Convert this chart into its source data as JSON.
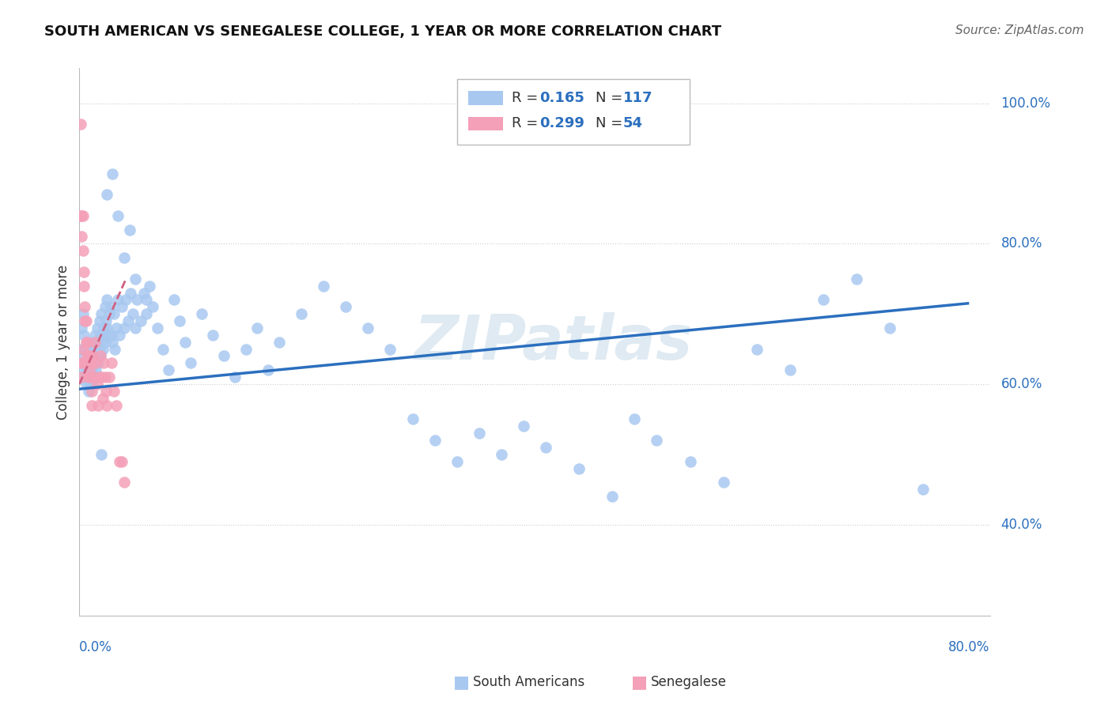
{
  "title": "SOUTH AMERICAN VS SENEGALESE COLLEGE, 1 YEAR OR MORE CORRELATION CHART",
  "source": "Source: ZipAtlas.com",
  "ylabel": "College, 1 year or more",
  "blue_color": "#A8C8F0",
  "pink_color": "#F4A0B8",
  "blue_line_color": "#2B6FBE",
  "pink_line_color": "#D06080",
  "watermark": "ZIPatlas",
  "xlim_min": 0.0,
  "xlim_max": 0.82,
  "ylim_min": 0.27,
  "ylim_max": 1.05,
  "ytick_values": [
    0.4,
    0.6,
    0.8,
    1.0
  ],
  "ytick_labels": [
    "40.0%",
    "60.0%",
    "80.0%",
    "100.0%"
  ],
  "grid_color": "#CCCCCC",
  "blue_r": "0.165",
  "blue_n": "117",
  "pink_r": "0.299",
  "pink_n": "54",
  "blue_x": [
    0.001,
    0.002,
    0.002,
    0.003,
    0.003,
    0.004,
    0.004,
    0.005,
    0.005,
    0.006,
    0.006,
    0.007,
    0.007,
    0.008,
    0.008,
    0.009,
    0.009,
    0.01,
    0.01,
    0.011,
    0.011,
    0.012,
    0.012,
    0.013,
    0.013,
    0.014,
    0.014,
    0.015,
    0.015,
    0.016,
    0.016,
    0.017,
    0.017,
    0.018,
    0.018,
    0.019,
    0.019,
    0.02,
    0.02,
    0.021,
    0.022,
    0.022,
    0.023,
    0.023,
    0.024,
    0.025,
    0.025,
    0.026,
    0.027,
    0.028,
    0.029,
    0.03,
    0.031,
    0.032,
    0.033,
    0.035,
    0.036,
    0.038,
    0.04,
    0.042,
    0.044,
    0.046,
    0.048,
    0.05,
    0.052,
    0.055,
    0.058,
    0.06,
    0.063,
    0.066,
    0.07,
    0.075,
    0.08,
    0.085,
    0.09,
    0.095,
    0.1,
    0.11,
    0.12,
    0.13,
    0.14,
    0.15,
    0.16,
    0.17,
    0.18,
    0.2,
    0.22,
    0.24,
    0.26,
    0.28,
    0.3,
    0.32,
    0.34,
    0.36,
    0.38,
    0.4,
    0.42,
    0.45,
    0.48,
    0.5,
    0.52,
    0.55,
    0.58,
    0.61,
    0.64,
    0.67,
    0.7,
    0.73,
    0.76,
    0.02,
    0.025,
    0.03,
    0.035,
    0.04,
    0.045,
    0.05,
    0.06
  ],
  "blue_y": [
    0.65,
    0.63,
    0.68,
    0.62,
    0.7,
    0.64,
    0.67,
    0.61,
    0.65,
    0.6,
    0.63,
    0.62,
    0.65,
    0.59,
    0.63,
    0.6,
    0.64,
    0.61,
    0.65,
    0.6,
    0.63,
    0.62,
    0.66,
    0.61,
    0.64,
    0.63,
    0.67,
    0.62,
    0.65,
    0.64,
    0.68,
    0.63,
    0.66,
    0.65,
    0.69,
    0.64,
    0.67,
    0.66,
    0.7,
    0.65,
    0.68,
    0.67,
    0.71,
    0.66,
    0.69,
    0.68,
    0.72,
    0.67,
    0.7,
    0.71,
    0.67,
    0.66,
    0.7,
    0.65,
    0.68,
    0.72,
    0.67,
    0.71,
    0.68,
    0.72,
    0.69,
    0.73,
    0.7,
    0.68,
    0.72,
    0.69,
    0.73,
    0.7,
    0.74,
    0.71,
    0.68,
    0.65,
    0.62,
    0.72,
    0.69,
    0.66,
    0.63,
    0.7,
    0.67,
    0.64,
    0.61,
    0.65,
    0.68,
    0.62,
    0.66,
    0.7,
    0.74,
    0.71,
    0.68,
    0.65,
    0.55,
    0.52,
    0.49,
    0.53,
    0.5,
    0.54,
    0.51,
    0.48,
    0.44,
    0.55,
    0.52,
    0.49,
    0.46,
    0.65,
    0.62,
    0.72,
    0.75,
    0.68,
    0.45,
    0.5,
    0.87,
    0.9,
    0.84,
    0.78,
    0.82,
    0.75,
    0.72
  ],
  "pink_x": [
    0.001,
    0.001,
    0.002,
    0.002,
    0.003,
    0.003,
    0.004,
    0.004,
    0.005,
    0.005,
    0.006,
    0.006,
    0.007,
    0.007,
    0.008,
    0.008,
    0.009,
    0.009,
    0.01,
    0.01,
    0.011,
    0.011,
    0.012,
    0.013,
    0.014,
    0.015,
    0.016,
    0.017,
    0.018,
    0.019,
    0.02,
    0.021,
    0.022,
    0.023,
    0.024,
    0.025,
    0.027,
    0.029,
    0.031,
    0.033,
    0.036,
    0.038,
    0.04,
    0.001,
    0.002,
    0.003,
    0.004,
    0.005,
    0.006,
    0.007,
    0.008,
    0.009,
    0.01,
    0.011
  ],
  "pink_y": [
    0.97,
    0.84,
    0.84,
    0.81,
    0.84,
    0.79,
    0.76,
    0.74,
    0.71,
    0.69,
    0.69,
    0.66,
    0.66,
    0.64,
    0.63,
    0.61,
    0.64,
    0.62,
    0.63,
    0.61,
    0.59,
    0.57,
    0.64,
    0.61,
    0.66,
    0.63,
    0.6,
    0.57,
    0.61,
    0.64,
    0.61,
    0.58,
    0.63,
    0.61,
    0.59,
    0.57,
    0.61,
    0.63,
    0.59,
    0.57,
    0.49,
    0.49,
    0.46,
    0.63,
    0.61,
    0.65,
    0.63,
    0.63,
    0.63,
    0.63,
    0.63,
    0.63,
    0.63,
    0.63
  ],
  "blue_line_x": [
    0.0,
    0.8
  ],
  "blue_line_y": [
    0.593,
    0.715
  ],
  "pink_line_x": [
    0.0,
    0.042
  ],
  "pink_line_y": [
    0.6,
    0.75
  ]
}
